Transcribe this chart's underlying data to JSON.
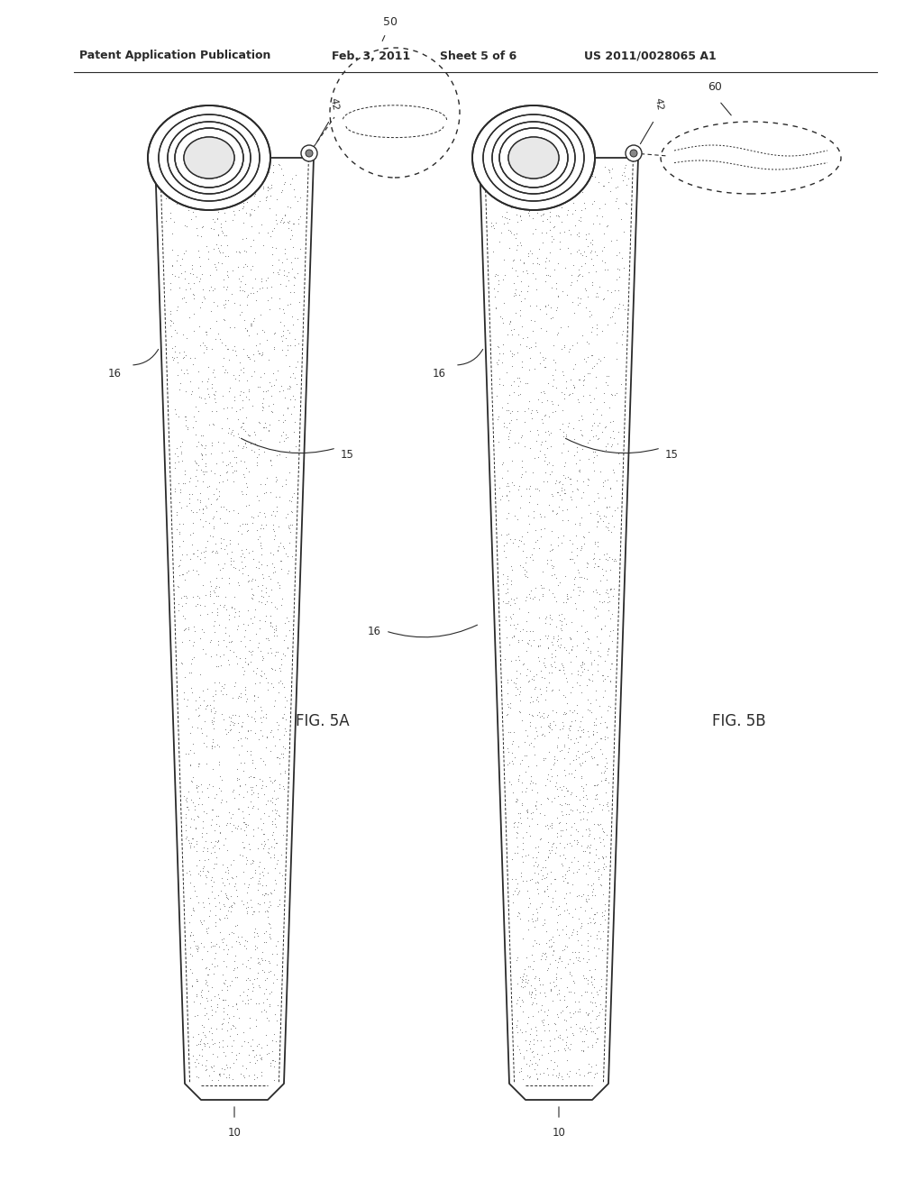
{
  "background_color": "#ffffff",
  "header_text": "Patent Application Publication",
  "header_date": "Feb. 3, 2011",
  "header_sheet": "Sheet 5 of 6",
  "header_patent": "US 2011/0028065 A1",
  "fig_label_5a": "FIG. 5A",
  "fig_label_5b": "FIG. 5B",
  "line_color": "#2a2a2a",
  "label_color": "#2a2a2a"
}
